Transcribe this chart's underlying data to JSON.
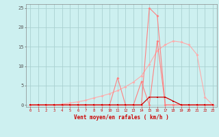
{
  "xlabel": "Vent moyen/en rafales ( km/h )",
  "x_ticks": [
    0,
    1,
    2,
    3,
    4,
    5,
    6,
    7,
    8,
    9,
    10,
    11,
    12,
    13,
    14,
    15,
    16,
    17,
    18,
    19,
    20,
    21,
    22,
    23
  ],
  "ylim": [
    -0.5,
    26
  ],
  "xlim": [
    -0.5,
    23.5
  ],
  "yticks": [
    0,
    5,
    10,
    15,
    20,
    25
  ],
  "bg_color": "#cdf0f0",
  "grid_color": "#aad0d0",
  "line_rafales_x": [
    0,
    1,
    2,
    3,
    4,
    5,
    6,
    7,
    8,
    9,
    10,
    11,
    12,
    13,
    14,
    15,
    16,
    17,
    18,
    19,
    20,
    21,
    22,
    23
  ],
  "line_rafales_y": [
    0,
    0,
    0,
    0,
    0,
    0,
    0,
    0,
    0,
    0,
    0,
    0,
    0,
    0,
    0,
    25,
    23,
    0,
    0,
    0,
    0,
    0,
    0,
    0
  ],
  "line_rafales_color": "#ff8080",
  "line_moy_x": [
    0,
    1,
    2,
    3,
    4,
    5,
    6,
    7,
    8,
    9,
    10,
    11,
    12,
    13,
    14,
    15,
    16,
    17,
    18,
    19,
    20,
    21,
    22,
    23
  ],
  "line_moy_y": [
    0,
    0,
    0,
    0,
    0.2,
    0.5,
    0.8,
    1.2,
    1.8,
    2.3,
    2.9,
    3.7,
    4.7,
    5.9,
    7.5,
    10.5,
    14.0,
    15.5,
    16.5,
    16.2,
    15.5,
    13.0,
    2.0,
    0
  ],
  "line_moy_color": "#ffaaaa",
  "line_peak_x": [
    0,
    1,
    2,
    3,
    4,
    5,
    6,
    7,
    8,
    9,
    10,
    11,
    12,
    13,
    14,
    15,
    16,
    17,
    18,
    19,
    20,
    21,
    22,
    23
  ],
  "line_peak_y": [
    0,
    0,
    0,
    0,
    0,
    0,
    0,
    0,
    0,
    0,
    0,
    7,
    0,
    0,
    6,
    0,
    16.5,
    0,
    0,
    0,
    0,
    0,
    0,
    0
  ],
  "line_peak_color": "#ff8080",
  "line_dark_x": [
    0,
    1,
    2,
    3,
    4,
    5,
    6,
    7,
    8,
    9,
    10,
    11,
    12,
    13,
    14,
    15,
    16,
    17,
    18,
    19,
    20,
    21,
    22,
    23
  ],
  "line_dark_y": [
    0,
    0,
    0,
    0,
    0,
    0,
    0,
    0,
    0,
    0,
    0,
    0,
    0,
    0,
    0,
    2,
    2,
    2,
    1,
    0,
    0,
    0,
    0,
    0
  ],
  "line_dark_color": "#cc0000",
  "marker_color": "#ff6666",
  "marker_dark": "#aa0000"
}
